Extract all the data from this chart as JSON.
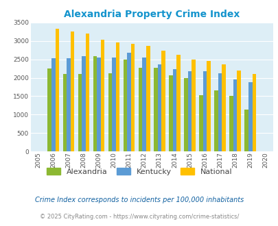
{
  "title": "Alexandria Property Crime Index",
  "years": [
    2005,
    2006,
    2007,
    2008,
    2009,
    2010,
    2011,
    2012,
    2013,
    2014,
    2015,
    2016,
    2017,
    2018,
    2019,
    2020
  ],
  "alexandria": [
    null,
    2250,
    2100,
    2100,
    2580,
    2120,
    2500,
    2280,
    2280,
    2060,
    2000,
    1530,
    1650,
    1500,
    1140,
    null
  ],
  "kentucky": [
    null,
    2540,
    2530,
    2590,
    2560,
    2550,
    2690,
    2550,
    2360,
    2240,
    2170,
    2170,
    2130,
    1960,
    1890,
    null
  ],
  "national": [
    null,
    3340,
    3260,
    3200,
    3040,
    2960,
    2930,
    2860,
    2730,
    2620,
    2490,
    2460,
    2360,
    2200,
    2100,
    null
  ],
  "alexandria_color": "#8cb832",
  "kentucky_color": "#5b9bd5",
  "national_color": "#ffc000",
  "bg_color": "#ddeef6",
  "title_color": "#1494cd",
  "ylim": [
    0,
    3500
  ],
  "yticks": [
    0,
    500,
    1000,
    1500,
    2000,
    2500,
    3000,
    3500
  ],
  "footer_text": "Crime Index corresponds to incidents per 100,000 inhabitants",
  "copyright_text": "© 2025 CityRating.com - https://www.cityrating.com/crime-statistics/",
  "legend_labels": [
    "Alexandria",
    "Kentucky",
    "National"
  ],
  "bar_width": 0.25
}
